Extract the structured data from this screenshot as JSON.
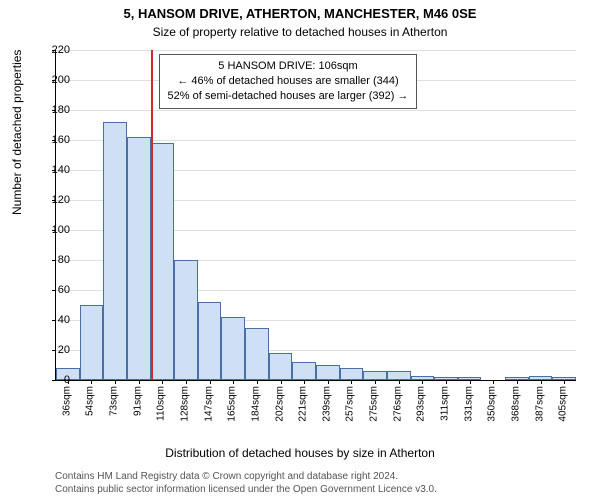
{
  "title": "5, HANSOM DRIVE, ATHERTON, MANCHESTER, M46 0SE",
  "subtitle": "Size of property relative to detached houses in Atherton",
  "y_axis_label": "Number of detached properties",
  "x_axis_label": "Distribution of detached houses by size in Atherton",
  "chart": {
    "type": "histogram",
    "background_color": "#ffffff",
    "grid_color": "#e0e0e0",
    "axis_color": "#000000",
    "bar_fill": "#cfe0f5",
    "bar_border": "#4a6fa5",
    "marker_color": "#d4292a",
    "y": {
      "min": 0,
      "max": 220,
      "step": 20
    },
    "x_labels": [
      "36sqm",
      "54sqm",
      "73sqm",
      "91sqm",
      "110sqm",
      "128sqm",
      "147sqm",
      "165sqm",
      "184sqm",
      "202sqm",
      "221sqm",
      "239sqm",
      "257sqm",
      "275sqm",
      "276sqm",
      "293sqm",
      "311sqm",
      "331sqm",
      "350sqm",
      "368sqm",
      "387sqm",
      "405sqm"
    ],
    "values": [
      8,
      50,
      172,
      162,
      158,
      80,
      52,
      42,
      35,
      18,
      12,
      10,
      8,
      6,
      6,
      3,
      2,
      2,
      0,
      2,
      3,
      2
    ],
    "marker_bin_index": 3,
    "info_box": {
      "line1": "5 HANSOM DRIVE: 106sqm",
      "line2": "← 46% of detached houses are smaller (344)",
      "line3": "52% of semi-detached houses are larger (392) →"
    }
  },
  "footer_line1": "Contains HM Land Registry data © Crown copyright and database right 2024.",
  "footer_line2": "Contains public sector information licensed under the Open Government Licence v3.0."
}
